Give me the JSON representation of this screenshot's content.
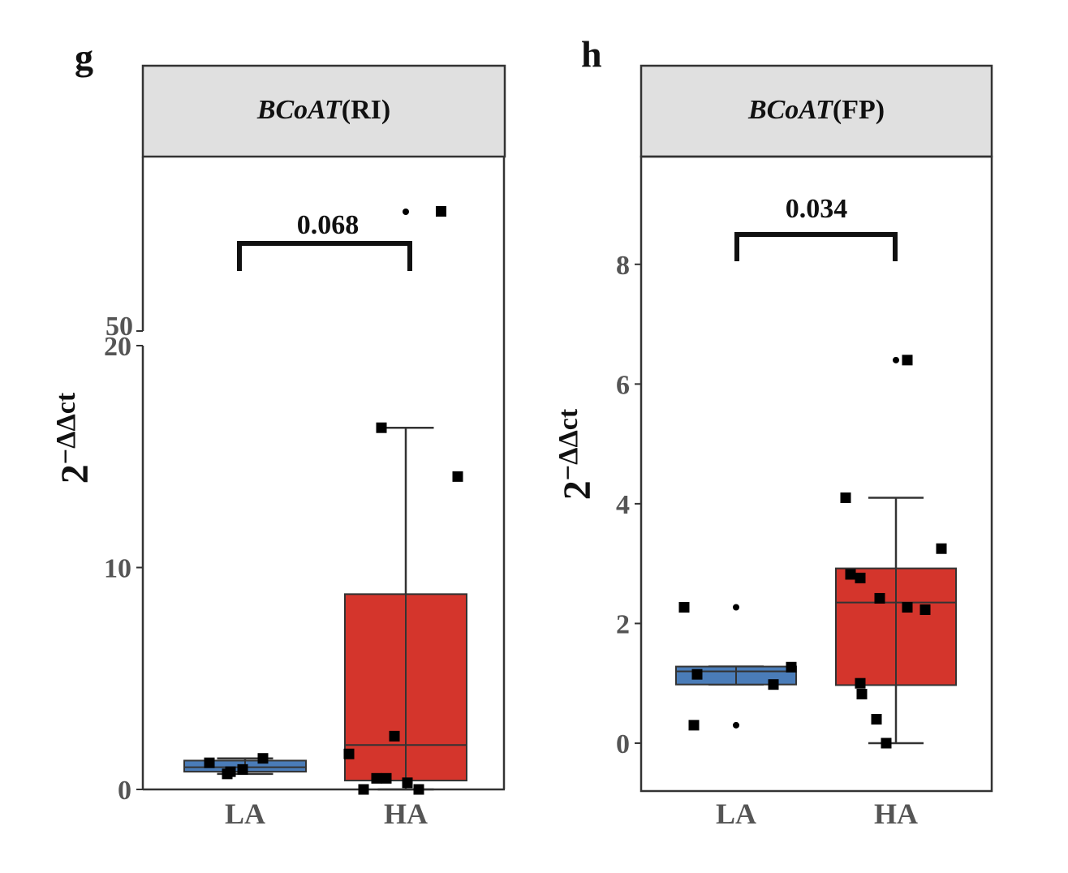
{
  "colors": {
    "LA": "#4a7cb8",
    "HA": "#d4352c",
    "strip": "#e0e0e0",
    "frame": "#333333",
    "points": "#000000",
    "tick_text": "#555555"
  },
  "chart_data": [
    {
      "type": "box",
      "panel_letter": "g",
      "strip_title_italic": "BCoAT",
      "strip_title_rest": "(RI)",
      "ylabel": "2",
      "ylabel_sup": "−ΔΔct",
      "categories": [
        "LA",
        "HA"
      ],
      "axis_break": {
        "lower": [
          0,
          20
        ],
        "upper_start_label": "50"
      },
      "ylim": [
        0,
        20
      ],
      "yticks": [
        0,
        10,
        20
      ],
      "ytick_labels": [
        "0",
        "10",
        "20"
      ],
      "grid": false,
      "significance": {
        "label": "0.068",
        "between": [
          "LA",
          "HA"
        ]
      },
      "series": [
        {
          "name": "LA",
          "box": {
            "whisker_low": 0.7,
            "q1": 0.8,
            "median": 1.0,
            "q3": 1.3,
            "whisker_high": 1.4
          },
          "points": [
            1.2,
            0.9,
            0.7,
            1.4,
            0.8
          ],
          "outliers": []
        },
        {
          "name": "HA",
          "box": {
            "whisker_low": 0.0,
            "q1": 0.4,
            "median": 2.0,
            "q3": 8.8,
            "whisker_high": 16.3
          },
          "points": [
            16.3,
            14.1,
            2.4,
            1.6,
            0.5,
            0.5,
            0.3,
            0.0,
            0.0
          ],
          "outliers_above_break": 2
        }
      ]
    },
    {
      "type": "box",
      "panel_letter": "h",
      "strip_title_italic": "BCoAT",
      "strip_title_rest": "(FP)",
      "ylabel": "2",
      "ylabel_sup": "−ΔΔct",
      "categories": [
        "LA",
        "HA"
      ],
      "ylim": [
        -0.8,
        9.8
      ],
      "yticks": [
        0,
        2,
        4,
        6,
        8
      ],
      "ytick_labels": [
        "0",
        "2",
        "4",
        "6",
        "8"
      ],
      "grid": false,
      "significance": {
        "label": "0.034",
        "between": [
          "LA",
          "HA"
        ]
      },
      "series": [
        {
          "name": "LA",
          "box": {
            "whisker_low": 0.98,
            "q1": 0.98,
            "median": 1.2,
            "q3": 1.28,
            "whisker_high": 1.28
          },
          "points": [
            2.27,
            1.15,
            0.3,
            0.98,
            1.27
          ],
          "outliers": [
            2.27,
            0.3
          ]
        },
        {
          "name": "HA",
          "box": {
            "whisker_low": 0.0,
            "q1": 0.97,
            "median": 2.35,
            "q3": 2.92,
            "whisker_high": 4.1
          },
          "points": [
            6.4,
            4.1,
            3.25,
            2.82,
            2.76,
            2.42,
            2.27,
            2.23,
            1.0,
            0.82,
            0.4,
            0.0
          ],
          "outliers": [
            6.4
          ]
        }
      ]
    }
  ]
}
